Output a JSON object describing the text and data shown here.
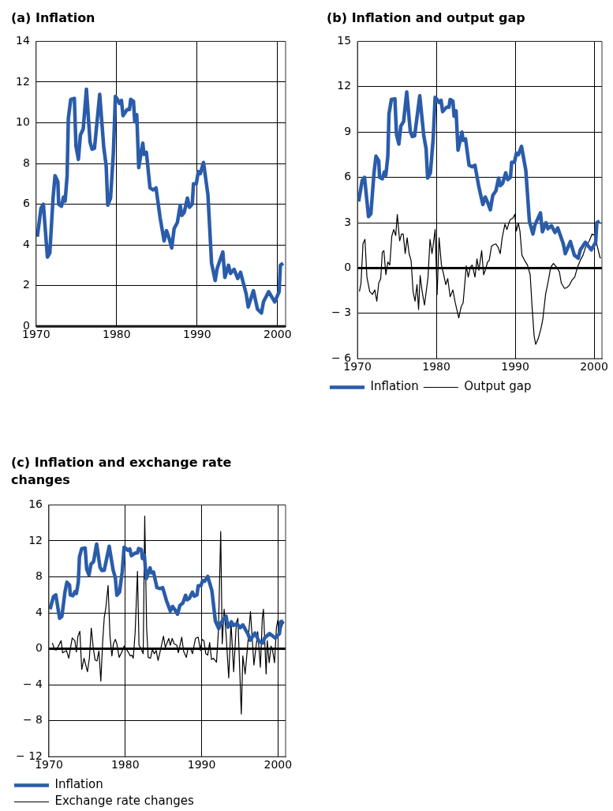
{
  "chart_data": [
    {
      "type": "line",
      "title": "(a) Inflation",
      "xlim": [
        1970,
        2001
      ],
      "xticks": [
        1970,
        1980,
        1990,
        2000
      ],
      "ylim": [
        0,
        14
      ],
      "yticks": [
        0,
        2,
        4,
        6,
        8,
        10,
        12,
        14
      ],
      "grid": true,
      "legend": false,
      "marker": "none",
      "ref_lines": [
        {
          "axis": "y",
          "value": 0,
          "color": "#000000"
        }
      ],
      "series": [
        {
          "color": "#2a5caa",
          "x": [
            1970.15,
            1970.6,
            1970.9,
            1971.4,
            1971.7,
            1972.1,
            1972.35,
            1972.7,
            1972.8,
            1973.15,
            1973.4,
            1973.6,
            1973.85,
            1974.0,
            1974.3,
            1974.75,
            1974.95,
            1975.25,
            1975.5,
            1975.85,
            1976.25,
            1976.7,
            1976.95,
            1977.25,
            1977.9,
            1978.4,
            1978.7,
            1978.9,
            1979.25,
            1979.6,
            1979.85,
            1980.1,
            1980.35,
            1980.6,
            1980.8,
            1981.3,
            1981.6,
            1981.75,
            1982.1,
            1982.25,
            1982.5,
            1982.75,
            1983.25,
            1983.4,
            1983.7,
            1984.15,
            1984.55,
            1984.9,
            1985.4,
            1985.9,
            1986.2,
            1986.5,
            1986.85,
            1987.15,
            1987.55,
            1987.9,
            1988.1,
            1988.4,
            1988.8,
            1989.05,
            1989.4,
            1989.55,
            1989.9,
            1990.15,
            1990.4,
            1990.8,
            1991.35,
            1991.8,
            1992.25,
            1992.5,
            1993.2,
            1993.45,
            1993.9,
            1994.15,
            1994.6,
            1995.05,
            1995.4,
            1996.1,
            1996.35,
            1997.0,
            1997.5,
            1998.0,
            1998.25,
            1998.9,
            1999.65,
            2000.2,
            2000.35,
            2000.7
          ],
          "values": [
            4.4,
            5.8,
            6.0,
            3.4,
            3.6,
            6.3,
            7.4,
            7.1,
            6.0,
            5.9,
            6.35,
            6.15,
            7.4,
            10.2,
            11.15,
            11.2,
            8.85,
            8.2,
            9.4,
            9.7,
            11.65,
            9.05,
            8.7,
            8.75,
            11.4,
            8.8,
            7.9,
            5.95,
            6.3,
            8.55,
            11.3,
            11.15,
            10.95,
            11.1,
            10.35,
            10.65,
            10.65,
            11.15,
            11.05,
            10.05,
            10.4,
            7.8,
            9.0,
            8.45,
            8.55,
            6.8,
            6.7,
            6.8,
            5.35,
            4.2,
            4.7,
            4.35,
            3.85,
            4.8,
            5.1,
            5.95,
            5.45,
            5.6,
            6.3,
            5.85,
            6.0,
            7.0,
            7.0,
            7.6,
            7.5,
            8.05,
            6.45,
            3.1,
            2.25,
            2.85,
            3.65,
            2.4,
            3.0,
            2.6,
            2.8,
            2.35,
            2.65,
            1.6,
            0.95,
            1.75,
            0.85,
            0.65,
            1.2,
            1.7,
            1.2,
            1.7,
            3.0,
            3.1
          ]
        }
      ]
    },
    {
      "type": "line",
      "title": "(b) Inflation and output gap",
      "xlim": [
        1970,
        2001
      ],
      "xticks": [
        1970,
        1980,
        1990,
        2000
      ],
      "ylim": [
        -6,
        15
      ],
      "yticks": [
        -6,
        -3,
        0,
        3,
        6,
        9,
        12,
        15
      ],
      "grid": true,
      "legend": "bottom",
      "marker": "none",
      "ref_lines": [
        {
          "axis": "y",
          "value": 0,
          "color": "#000000"
        }
      ],
      "series": [
        {
          "name": "Inflation",
          "color": "#2a5caa",
          "x": [
            1970.15,
            1970.6,
            1970.9,
            1971.4,
            1971.7,
            1972.1,
            1972.35,
            1972.7,
            1972.8,
            1973.15,
            1973.4,
            1973.6,
            1973.85,
            1974.0,
            1974.3,
            1974.75,
            1974.95,
            1975.25,
            1975.5,
            1975.85,
            1976.25,
            1976.7,
            1976.95,
            1977.25,
            1977.9,
            1978.4,
            1978.7,
            1978.9,
            1979.25,
            1979.6,
            1979.85,
            1980.1,
            1980.35,
            1980.6,
            1980.8,
            1981.3,
            1981.6,
            1981.75,
            1982.1,
            1982.25,
            1982.5,
            1982.75,
            1983.25,
            1983.4,
            1983.7,
            1984.15,
            1984.55,
            1984.9,
            1985.4,
            1985.9,
            1986.2,
            1986.5,
            1986.85,
            1987.15,
            1987.55,
            1987.9,
            1988.1,
            1988.4,
            1988.8,
            1989.05,
            1989.4,
            1989.55,
            1989.9,
            1990.15,
            1990.4,
            1990.8,
            1991.35,
            1991.8,
            1992.25,
            1992.5,
            1993.2,
            1993.45,
            1993.9,
            1994.15,
            1994.6,
            1995.05,
            1995.4,
            1996.1,
            1996.35,
            1997.0,
            1997.5,
            1998.0,
            1998.25,
            1998.9,
            1999.65,
            2000.2,
            2000.35,
            2000.7
          ],
          "values": [
            4.4,
            5.8,
            6.0,
            3.4,
            3.6,
            6.3,
            7.4,
            7.1,
            6.0,
            5.9,
            6.35,
            6.15,
            7.4,
            10.2,
            11.15,
            11.2,
            8.85,
            8.2,
            9.4,
            9.7,
            11.65,
            9.05,
            8.7,
            8.75,
            11.4,
            8.8,
            7.9,
            5.95,
            6.3,
            8.55,
            11.3,
            11.15,
            10.95,
            11.1,
            10.35,
            10.65,
            10.65,
            11.15,
            11.05,
            10.05,
            10.4,
            7.8,
            9.0,
            8.45,
            8.55,
            6.8,
            6.7,
            6.8,
            5.35,
            4.2,
            4.7,
            4.35,
            3.85,
            4.8,
            5.1,
            5.95,
            5.45,
            5.6,
            6.3,
            5.85,
            6.0,
            7.0,
            7.0,
            7.6,
            7.5,
            8.05,
            6.45,
            3.1,
            2.25,
            2.85,
            3.65,
            2.4,
            3.0,
            2.6,
            2.8,
            2.35,
            2.65,
            1.6,
            0.95,
            1.75,
            0.85,
            0.65,
            1.2,
            1.7,
            1.2,
            1.7,
            3.0,
            3.1
          ]
        },
        {
          "name": "Output gap",
          "color": "#000000",
          "x": [
            1970.25,
            1970.45,
            1970.7,
            1970.95,
            1971.2,
            1971.55,
            1971.9,
            1972.2,
            1972.45,
            1972.7,
            1972.95,
            1973.15,
            1973.35,
            1973.6,
            1973.85,
            1974.1,
            1974.35,
            1974.6,
            1974.85,
            1975.05,
            1975.35,
            1975.6,
            1975.8,
            1976.05,
            1976.3,
            1976.55,
            1976.8,
            1977.05,
            1977.3,
            1977.55,
            1977.75,
            1977.95,
            1978.2,
            1978.5,
            1978.95,
            1979.2,
            1979.45,
            1979.6,
            1979.85,
            1980.1,
            1980.35,
            1980.65,
            1980.85,
            1981.2,
            1981.45,
            1981.75,
            1982.1,
            1982.4,
            1982.85,
            1983.15,
            1983.4,
            1983.8,
            1984.05,
            1984.3,
            1984.55,
            1984.9,
            1985.15,
            1985.4,
            1985.75,
            1986.0,
            1986.2,
            1986.5,
            1986.7,
            1987.0,
            1987.3,
            1987.55,
            1987.85,
            1988.1,
            1988.35,
            1988.7,
            1988.95,
            1989.35,
            1989.7,
            1989.95,
            1990.15,
            1990.4,
            1990.6,
            1990.85,
            1991.2,
            1991.55,
            1991.9,
            1992.15,
            1992.4,
            1992.6,
            1992.9,
            1993.25,
            1993.5,
            1993.85,
            1994.25,
            1994.5,
            1994.85,
            1995.25,
            1995.6,
            1995.85,
            1996.25,
            1996.55,
            1996.85,
            1997.2,
            1997.55,
            1997.9,
            1998.25,
            1998.6,
            1998.9,
            1999.4,
            1999.75,
            2000.1,
            2000.4,
            2000.75,
            2000.85
          ],
          "values": [
            -1.55,
            -1.0,
            1.6,
            1.9,
            -0.6,
            -1.55,
            -1.75,
            -1.45,
            -2.2,
            -1.0,
            -0.7,
            1.05,
            1.15,
            -0.45,
            0.4,
            0.2,
            2.1,
            2.55,
            2.15,
            3.55,
            1.8,
            2.25,
            2.25,
            0.95,
            2.0,
            0.95,
            0.5,
            -1.55,
            -2.2,
            -1.1,
            -2.75,
            -0.5,
            -1.55,
            -2.45,
            -0.6,
            1.9,
            0.95,
            1.5,
            2.55,
            -1.75,
            2.0,
            0.2,
            -0.25,
            -1.1,
            -0.7,
            -1.9,
            -1.45,
            -2.3,
            -3.3,
            -2.55,
            -2.3,
            0.15,
            -0.6,
            0.05,
            0.2,
            -0.6,
            0.6,
            -0.15,
            1.15,
            -0.45,
            -0.15,
            0.4,
            0.5,
            1.45,
            1.55,
            1.6,
            1.35,
            0.95,
            2.0,
            2.9,
            2.55,
            3.2,
            3.3,
            3.55,
            2.45,
            3.0,
            2.45,
            0.85,
            0.5,
            0.2,
            -0.45,
            -2.65,
            -4.5,
            -5.05,
            -4.7,
            -4.05,
            -3.4,
            -1.75,
            -0.7,
            0.05,
            0.3,
            0.05,
            -0.25,
            -1.0,
            -1.35,
            -1.3,
            -1.15,
            -0.8,
            -0.6,
            0.05,
            0.5,
            0.85,
            1.35,
            1.8,
            2.25,
            2.15,
            1.45,
            0.7,
            0.65
          ]
        }
      ]
    },
    {
      "type": "line",
      "title": "(c) Inflation and exchange rate changes",
      "xlim": [
        1970,
        2001
      ],
      "xticks": [
        1970,
        1980,
        1990,
        2000
      ],
      "ylim": [
        -12,
        16
      ],
      "yticks": [
        -12,
        -8,
        -4,
        0,
        4,
        8,
        12,
        16
      ],
      "grid": true,
      "legend": "bottom",
      "marker": "none",
      "ref_lines": [
        {
          "axis": "y",
          "value": 0,
          "color": "#000000"
        }
      ],
      "series": [
        {
          "name": "Inflation",
          "color": "#2a5caa",
          "x": [
            1970.15,
            1970.6,
            1970.9,
            1971.4,
            1971.7,
            1972.1,
            1972.35,
            1972.7,
            1972.8,
            1973.15,
            1973.4,
            1973.6,
            1973.85,
            1974.0,
            1974.3,
            1974.75,
            1974.95,
            1975.25,
            1975.5,
            1975.85,
            1976.25,
            1976.7,
            1976.95,
            1977.25,
            1977.9,
            1978.4,
            1978.7,
            1978.9,
            1979.25,
            1979.6,
            1979.85,
            1980.1,
            1980.35,
            1980.6,
            1980.8,
            1981.3,
            1981.6,
            1981.75,
            1982.1,
            1982.25,
            1982.5,
            1982.75,
            1983.25,
            1983.4,
            1983.7,
            1984.15,
            1984.55,
            1984.9,
            1985.4,
            1985.9,
            1986.2,
            1986.5,
            1986.85,
            1987.15,
            1987.55,
            1987.9,
            1988.1,
            1988.4,
            1988.8,
            1989.05,
            1989.4,
            1989.55,
            1989.9,
            1990.15,
            1990.4,
            1990.8,
            1991.35,
            1991.8,
            1992.25,
            1992.5,
            1993.2,
            1993.45,
            1993.9,
            1994.15,
            1994.6,
            1995.05,
            1995.4,
            1996.1,
            1996.35,
            1997.0,
            1997.5,
            1998.0,
            1998.25,
            1998.9,
            1999.65,
            2000.2,
            2000.35,
            2000.7
          ],
          "values": [
            4.4,
            5.8,
            6.0,
            3.4,
            3.6,
            6.3,
            7.4,
            7.1,
            6.0,
            5.9,
            6.35,
            6.15,
            7.4,
            10.2,
            11.15,
            11.2,
            8.85,
            8.2,
            9.4,
            9.7,
            11.65,
            9.05,
            8.7,
            8.75,
            11.4,
            8.8,
            7.9,
            5.95,
            6.3,
            8.55,
            11.3,
            11.15,
            10.95,
            11.1,
            10.35,
            10.65,
            10.65,
            11.15,
            11.05,
            10.05,
            10.4,
            7.8,
            9.0,
            8.45,
            8.55,
            6.8,
            6.7,
            6.8,
            5.35,
            4.2,
            4.7,
            4.35,
            3.85,
            4.8,
            5.1,
            5.95,
            5.45,
            5.6,
            6.3,
            5.85,
            6.0,
            7.0,
            7.0,
            7.6,
            7.5,
            8.05,
            6.45,
            3.1,
            2.25,
            2.85,
            3.65,
            2.4,
            3.0,
            2.6,
            2.8,
            2.35,
            2.65,
            1.6,
            0.95,
            1.75,
            0.85,
            0.65,
            1.2,
            1.7,
            1.2,
            1.7,
            3.0,
            3.1
          ]
        },
        {
          "name": "Exchange rate changes",
          "color": "#000000",
          "x": [
            1970.45,
            1970.75,
            1970.95,
            1971.15,
            1971.6,
            1971.8,
            1972.3,
            1972.6,
            1973.05,
            1973.4,
            1973.6,
            1973.8,
            1974.05,
            1974.3,
            1974.6,
            1975.05,
            1975.3,
            1975.55,
            1975.8,
            1976.05,
            1976.3,
            1976.55,
            1976.8,
            1977.05,
            1977.25,
            1977.45,
            1977.75,
            1978.0,
            1978.25,
            1978.45,
            1978.7,
            1978.9,
            1979.2,
            1979.5,
            1979.85,
            1980.15,
            1980.45,
            1980.65,
            1980.85,
            1981.05,
            1981.3,
            1981.6,
            1981.8,
            1982.1,
            1982.35,
            1982.55,
            1982.8,
            1983.0,
            1983.3,
            1983.55,
            1983.8,
            1984.05,
            1984.3,
            1984.75,
            1985.0,
            1985.25,
            1985.7,
            1985.9,
            1986.15,
            1986.4,
            1986.75,
            1986.95,
            1987.4,
            1987.65,
            1988.0,
            1988.2,
            1988.55,
            1988.8,
            1989.2,
            1989.55,
            1989.85,
            1990.05,
            1990.3,
            1990.55,
            1990.8,
            1991.05,
            1991.3,
            1991.55,
            1991.95,
            1992.2,
            1992.5,
            1992.7,
            1992.95,
            1993.2,
            1993.55,
            1993.85,
            1994.2,
            1994.55,
            1994.75,
            1995.2,
            1995.4,
            1995.7,
            1996.0,
            1996.4,
            1996.85,
            1997.15,
            1997.35,
            1997.7,
            1997.95,
            1998.1,
            1998.45,
            1998.6,
            1998.85,
            1999.1,
            1999.3,
            1999.55,
            1999.8,
            2000.0,
            2000.3,
            2000.55,
            2000.8
          ],
          "values": [
            0.65,
            -0.1,
            -0.15,
            0.15,
            0.9,
            -0.45,
            -0.2,
            -1.05,
            1.2,
            0.9,
            -0.35,
            1.4,
            1.95,
            -2.3,
            -1.05,
            -2.55,
            -1.05,
            2.3,
            0.15,
            -1.25,
            -1.35,
            -0.25,
            -3.6,
            0.9,
            3.5,
            4.5,
            7.05,
            1.4,
            -0.8,
            0.55,
            1.05,
            0.55,
            -0.95,
            -0.45,
            0.3,
            -0.05,
            -0.45,
            -0.8,
            -0.7,
            -1.05,
            1.9,
            8.6,
            0.4,
            -0.05,
            -0.55,
            14.75,
            2.3,
            -0.95,
            -1.05,
            -0.1,
            -0.55,
            -0.2,
            -1.3,
            0.4,
            1.4,
            0.15,
            1.15,
            0.4,
            1.15,
            0.55,
            0.4,
            -0.45,
            1.3,
            -0.3,
            -0.95,
            -0.05,
            0.05,
            -0.55,
            1.15,
            1.3,
            -0.2,
            1.05,
            0.9,
            -0.55,
            -0.7,
            0.7,
            -1.2,
            -1.05,
            -1.5,
            1.95,
            13.05,
            0.55,
            4.4,
            1.65,
            -3.25,
            2.9,
            -2.55,
            2.9,
            3.4,
            -7.25,
            -0.8,
            -2.8,
            0.05,
            4.15,
            -1.8,
            0.4,
            1.9,
            -2.05,
            3.4,
            4.4,
            -2.8,
            0.9,
            -1.55,
            0.3,
            -0.2,
            -1.55,
            2.4,
            3.25,
            1.9,
            2.65,
            3.0
          ]
        }
      ]
    }
  ]
}
